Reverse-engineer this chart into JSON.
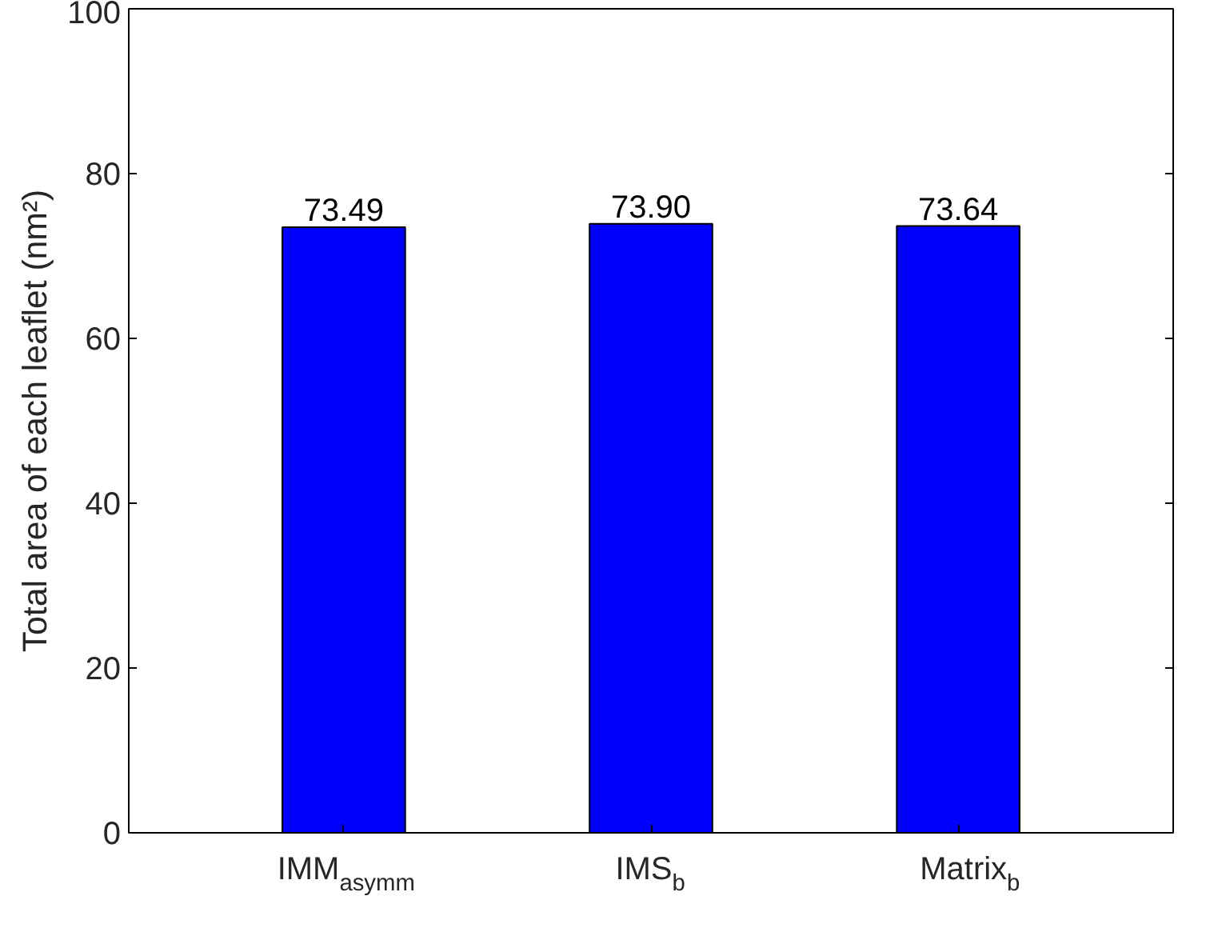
{
  "chart_data": {
    "type": "bar",
    "ylabel": "Total area of each leaflet (nm²)",
    "categories": [
      "IMM$_{asymm}$",
      "IMS$_{b}$",
      "Matrix$_{b}$"
    ],
    "values": [
      73.49,
      73.9,
      73.64
    ],
    "color": "#0000ff",
    "value_labels": [
      "73.49",
      "73.90",
      "73.64"
    ],
    "ylim": [
      0,
      100
    ],
    "yticks": [
      0,
      20,
      40,
      60,
      80,
      100
    ],
    "grid": false
  }
}
